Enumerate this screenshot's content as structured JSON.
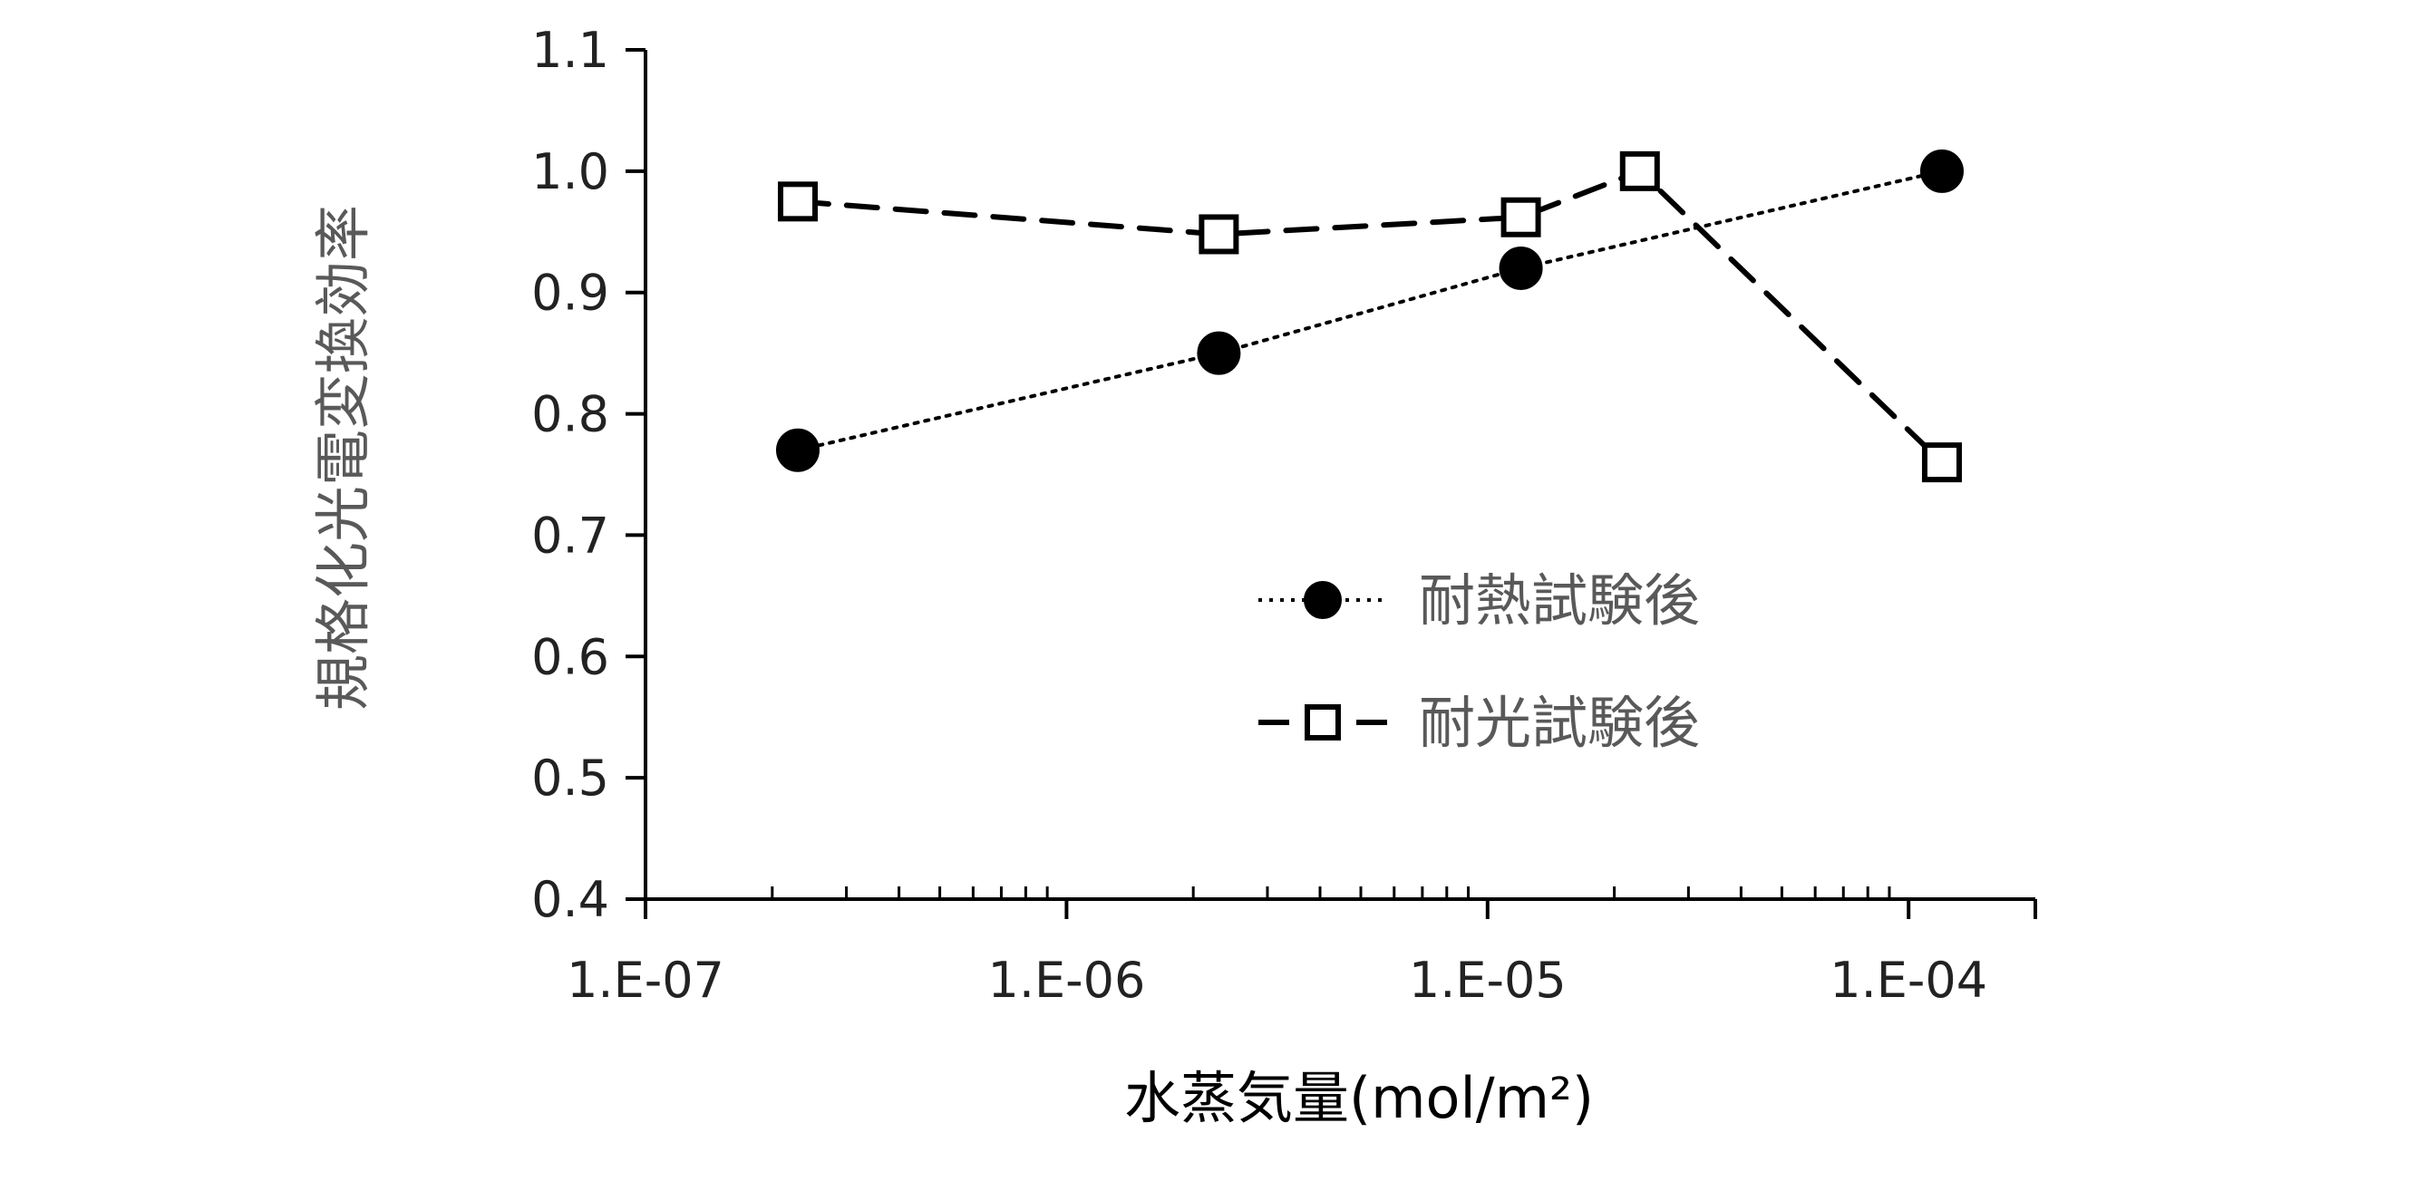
{
  "chart_data": {
    "type": "line",
    "title": "",
    "xlabel": "水蒸気量(mol/m²)",
    "ylabel": "規格化光電変換効率",
    "x_scale": "log",
    "xlim": [
      1e-07,
      0.0002
    ],
    "ylim": [
      0.4,
      1.1
    ],
    "x_ticks": [
      {
        "value": 1e-07,
        "label": "1.E-07"
      },
      {
        "value": 1e-06,
        "label": "1.E-06"
      },
      {
        "value": 1e-05,
        "label": "1.E-05"
      },
      {
        "value": 0.0001,
        "label": "1.E-04"
      }
    ],
    "y_ticks": [
      {
        "value": 0.4,
        "label": "0.4"
      },
      {
        "value": 0.5,
        "label": "0.5"
      },
      {
        "value": 0.6,
        "label": "0.6"
      },
      {
        "value": 0.7,
        "label": "0.7"
      },
      {
        "value": 0.8,
        "label": "0.8"
      },
      {
        "value": 0.9,
        "label": "0.9"
      },
      {
        "value": 1.0,
        "label": "1.0"
      },
      {
        "value": 1.1,
        "label": "1.1"
      }
    ],
    "grid": false,
    "legend_position": "middle-right",
    "series": [
      {
        "name": "耐熱試験後",
        "line_style": "dotted",
        "marker": "filled-circle",
        "color": "#000000",
        "x": [
          2.3e-07,
          2.3e-06,
          1.2e-05,
          0.00012
        ],
        "y": [
          0.77,
          0.85,
          0.92,
          1.0
        ]
      },
      {
        "name": "耐光試験後",
        "line_style": "dashed",
        "marker": "open-square",
        "color": "#000000",
        "x": [
          2.3e-07,
          2.3e-06,
          1.2e-05,
          2.3e-05,
          0.00012
        ],
        "y": [
          0.975,
          0.948,
          0.962,
          1.0,
          0.76
        ]
      }
    ]
  }
}
